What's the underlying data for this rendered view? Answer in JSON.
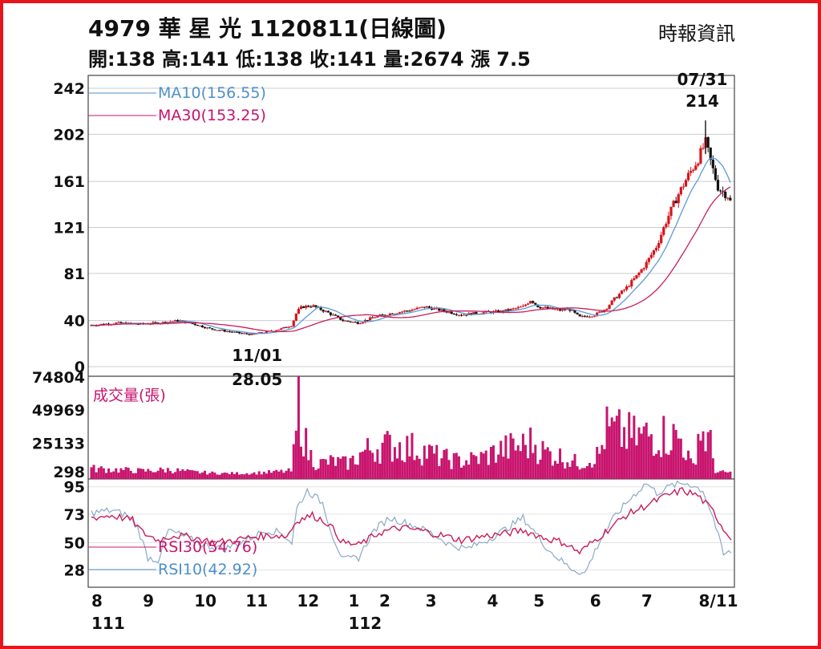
{
  "header": {
    "title": "4979  華 星 光 1120811(日線圖)",
    "source": "時報資訊",
    "ohlc": "開:138 高:141 低:138 收:141 量:2674 漲 7.5"
  },
  "colors": {
    "frame": "#e8141b",
    "up_candle": "#d6141c",
    "down_candle": "#111111",
    "ma10": "#5b9bd5",
    "ma30": "#c81e5a",
    "volume": "#c8146e",
    "rsi10": "#8aa9c9",
    "rsi30": "#c81e5a",
    "legend_ma10": "#4f8fca",
    "legend_magenta": "#c8146e",
    "grid": "#cccccc"
  },
  "chart_data": {
    "type": "candlestick-with-volume-and-rsi",
    "price_panel": {
      "yticks": [
        242,
        202,
        161,
        121,
        81,
        40,
        0
      ],
      "ylim": [
        0,
        242
      ],
      "legend": [
        {
          "label": "MA10(156.55)",
          "color": "#4f8fca"
        },
        {
          "label": "MA30(153.25)",
          "color": "#c8146e"
        }
      ],
      "annotations": [
        {
          "date_label": "11/01",
          "value_label": "28.05",
          "value": 28.05,
          "month": 11.1
        },
        {
          "date_label": "07/31",
          "value_label": "214",
          "value": 214,
          "month": 19.95
        }
      ],
      "anchors": [
        [
          8.0,
          36
        ],
        [
          8.5,
          38
        ],
        [
          8.9,
          37
        ],
        [
          9.3,
          38
        ],
        [
          9.7,
          40
        ],
        [
          10.0,
          37
        ],
        [
          10.3,
          33
        ],
        [
          10.6,
          31
        ],
        [
          10.9,
          29
        ],
        [
          11.1,
          28
        ],
        [
          11.4,
          30
        ],
        [
          11.7,
          33
        ],
        [
          11.9,
          36
        ],
        [
          12.0,
          48
        ],
        [
          12.1,
          52
        ],
        [
          12.3,
          53
        ],
        [
          12.6,
          47
        ],
        [
          12.9,
          40
        ],
        [
          13.2,
          38
        ],
        [
          13.5,
          43
        ],
        [
          13.8,
          46
        ],
        [
          14.2,
          49
        ],
        [
          14.5,
          52
        ],
        [
          14.8,
          49
        ],
        [
          15.2,
          45
        ],
        [
          15.6,
          47
        ],
        [
          16.0,
          48
        ],
        [
          16.4,
          52
        ],
        [
          16.55,
          58
        ],
        [
          16.7,
          52
        ],
        [
          17.1,
          49
        ],
        [
          17.3,
          50
        ],
        [
          17.5,
          43
        ],
        [
          17.8,
          45
        ],
        [
          18.0,
          50
        ],
        [
          18.2,
          60
        ],
        [
          18.4,
          68
        ],
        [
          18.6,
          78
        ],
        [
          18.8,
          90
        ],
        [
          19.0,
          105
        ],
        [
          19.2,
          128
        ],
        [
          19.4,
          148
        ],
        [
          19.6,
          165
        ],
        [
          19.8,
          180
        ],
        [
          19.95,
          195
        ],
        [
          20.05,
          178
        ],
        [
          20.2,
          155
        ],
        [
          20.4,
          148
        ],
        [
          20.45,
          141
        ]
      ],
      "ma10_last": 156.55,
      "ma30_last": 153.25
    },
    "volume_panel": {
      "title": "成交量(張)",
      "yticks": [
        74804,
        49969,
        25133,
        298
      ],
      "ylim": [
        0,
        74804
      ],
      "anchors": [
        [
          8.0,
          6000
        ],
        [
          8.5,
          5000
        ],
        [
          9.0,
          4000
        ],
        [
          9.5,
          5000
        ],
        [
          10.0,
          3000
        ],
        [
          10.5,
          2000
        ],
        [
          11.0,
          2000
        ],
        [
          11.5,
          3000
        ],
        [
          11.9,
          4000
        ],
        [
          12.0,
          40000
        ],
        [
          12.05,
          74804
        ],
        [
          12.1,
          45000
        ],
        [
          12.2,
          20000
        ],
        [
          12.4,
          10000
        ],
        [
          12.7,
          12000
        ],
        [
          13.0,
          10000
        ],
        [
          13.3,
          20000
        ],
        [
          13.6,
          25000
        ],
        [
          14.0,
          25000
        ],
        [
          14.4,
          22000
        ],
        [
          14.8,
          15000
        ],
        [
          15.2,
          12000
        ],
        [
          15.6,
          15000
        ],
        [
          16.0,
          22000
        ],
        [
          16.4,
          25000
        ],
        [
          16.6,
          28000
        ],
        [
          16.8,
          20000
        ],
        [
          17.2,
          15000
        ],
        [
          17.5,
          10000
        ],
        [
          17.9,
          18000
        ],
        [
          18.0,
          38000
        ],
        [
          18.3,
          35000
        ],
        [
          18.6,
          32000
        ],
        [
          19.0,
          35000
        ],
        [
          19.3,
          33000
        ],
        [
          19.5,
          30000
        ],
        [
          19.7,
          5000
        ],
        [
          19.8,
          36000
        ],
        [
          19.95,
          33000
        ],
        [
          20.05,
          25000
        ],
        [
          20.15,
          3000
        ],
        [
          20.45,
          2674
        ]
      ]
    },
    "rsi_panel": {
      "yticks": [
        95,
        73,
        50,
        28
      ],
      "ylim": [
        18,
        100
      ],
      "legend": [
        {
          "label": "RSI30(54.76)",
          "color": "#c8146e"
        },
        {
          "label": "RSI10(42.92)",
          "color": "#4f8fca"
        }
      ],
      "rsi30_anchors": [
        [
          8.0,
          70
        ],
        [
          8.4,
          72
        ],
        [
          8.8,
          68
        ],
        [
          9.0,
          58
        ],
        [
          9.3,
          52
        ],
        [
          9.6,
          56
        ],
        [
          10.0,
          54
        ],
        [
          10.4,
          50
        ],
        [
          10.8,
          52
        ],
        [
          11.2,
          55
        ],
        [
          11.6,
          56
        ],
        [
          11.8,
          55
        ],
        [
          12.0,
          68
        ],
        [
          12.3,
          72
        ],
        [
          12.6,
          66
        ],
        [
          12.9,
          50
        ],
        [
          13.2,
          48
        ],
        [
          13.6,
          58
        ],
        [
          14.0,
          62
        ],
        [
          14.4,
          60
        ],
        [
          14.8,
          56
        ],
        [
          15.2,
          52
        ],
        [
          15.6,
          55
        ],
        [
          16.0,
          57
        ],
        [
          16.4,
          60
        ],
        [
          16.8,
          54
        ],
        [
          17.2,
          50
        ],
        [
          17.5,
          42
        ],
        [
          17.8,
          52
        ],
        [
          18.1,
          62
        ],
        [
          18.4,
          72
        ],
        [
          18.8,
          80
        ],
        [
          19.2,
          88
        ],
        [
          19.5,
          92
        ],
        [
          19.8,
          88
        ],
        [
          20.1,
          75
        ],
        [
          20.35,
          58
        ],
        [
          20.45,
          54.76
        ]
      ],
      "rsi10_anchors": [
        [
          8.0,
          74
        ],
        [
          8.4,
          76
        ],
        [
          8.7,
          72
        ],
        [
          8.9,
          62
        ],
        [
          9.1,
          38
        ],
        [
          9.3,
          36
        ],
        [
          9.5,
          60
        ],
        [
          9.8,
          55
        ],
        [
          10.2,
          48
        ],
        [
          10.6,
          45
        ],
        [
          11.0,
          52
        ],
        [
          11.4,
          60
        ],
        [
          11.7,
          58
        ],
        [
          11.9,
          50
        ],
        [
          12.0,
          78
        ],
        [
          12.2,
          92
        ],
        [
          12.5,
          82
        ],
        [
          12.7,
          55
        ],
        [
          12.9,
          36
        ],
        [
          13.2,
          38
        ],
        [
          13.5,
          60
        ],
        [
          13.8,
          70
        ],
        [
          14.2,
          65
        ],
        [
          14.6,
          58
        ],
        [
          15.0,
          48
        ],
        [
          15.3,
          45
        ],
        [
          15.7,
          52
        ],
        [
          16.1,
          62
        ],
        [
          16.4,
          70
        ],
        [
          16.6,
          60
        ],
        [
          16.9,
          44
        ],
        [
          17.3,
          30
        ],
        [
          17.6,
          25
        ],
        [
          17.9,
          52
        ],
        [
          18.2,
          72
        ],
        [
          18.5,
          86
        ],
        [
          18.8,
          98
        ],
        [
          19.0,
          90
        ],
        [
          19.3,
          96
        ],
        [
          19.6,
          98
        ],
        [
          19.9,
          92
        ],
        [
          20.1,
          70
        ],
        [
          20.3,
          40
        ],
        [
          20.45,
          42.92
        ]
      ]
    },
    "x_axis": {
      "month_range": [
        8.0,
        20.45
      ],
      "ticks": [
        {
          "label": "8",
          "month": 8.0
        },
        {
          "label": "9",
          "month": 9.0
        },
        {
          "label": "10",
          "month": 10.0
        },
        {
          "label": "11",
          "month": 11.0
        },
        {
          "label": "12",
          "month": 12.0
        },
        {
          "label": "1",
          "month": 13.0
        },
        {
          "label": "2",
          "month": 13.6
        },
        {
          "label": "3",
          "month": 14.5
        },
        {
          "label": "4",
          "month": 15.7
        },
        {
          "label": "5",
          "month": 16.6
        },
        {
          "label": "6",
          "month": 17.7
        },
        {
          "label": "7",
          "month": 18.7
        },
        {
          "label": "8/11",
          "month": 20.3
        }
      ],
      "year_labels": [
        {
          "label": "111",
          "month": 8.0
        },
        {
          "label": "112",
          "month": 13.0
        }
      ]
    }
  }
}
